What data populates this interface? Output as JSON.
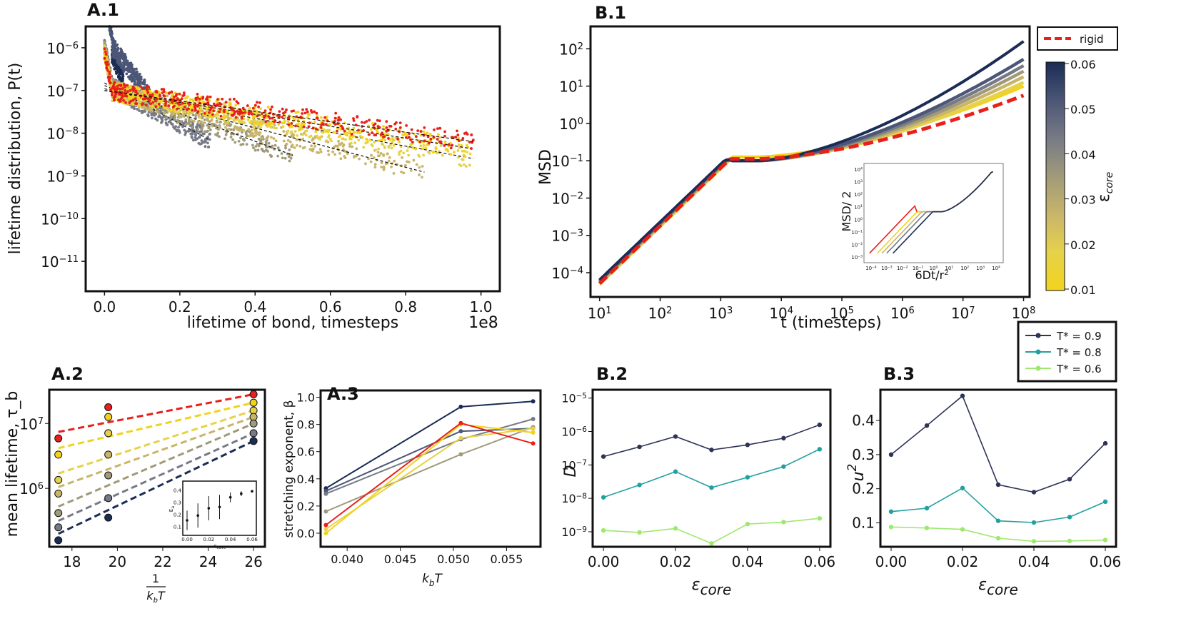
{
  "colors": {
    "eps_0.00": "#f2d31c",
    "eps_0.01": "#e6d24a",
    "eps_0.02": "#c8b56a",
    "eps_0.03": "#a09a7a",
    "eps_0.04": "#777a86",
    "eps_0.05": "#4c5676",
    "eps_0.06": "#1b2c55",
    "rigid": "#e8201a",
    "T09": "#2e3358",
    "T08": "#22a0a0",
    "T06": "#9ee870"
  },
  "chart_data": [
    {
      "id": "A1",
      "panel": "A.1",
      "type": "scatter",
      "xlabel": "lifetime of bond, timesteps",
      "ylabel": "lifetime distribution, P(t)",
      "x_offset_label": "1e8",
      "xlim": [
        -0.05,
        1.05
      ],
      "ylim_log": [
        -11.7,
        -5.5
      ],
      "yscale": "log",
      "xticks": [
        "0.0",
        "0.2",
        "0.4",
        "0.6",
        "0.8",
        "1.0"
      ],
      "yticks": [
        "10^-6",
        "10^-7",
        "10^-8",
        "10^-9",
        "10^-10",
        "10^-11"
      ],
      "series": [
        {
          "color_key": "eps_0.06",
          "tau": 0.009,
          "xmax": 0.05,
          "p0": 2e-06
        },
        {
          "color_key": "eps_0.05",
          "tau": 0.017,
          "xmax": 0.12,
          "p0": 1.8e-06
        },
        {
          "color_key": "eps_0.04",
          "tau": 0.041,
          "xmax": 0.28,
          "p0": 1.5e-07
        },
        {
          "color_key": "eps_0.03",
          "tau": 0.06,
          "xmax": 0.5,
          "p0": 1.3e-07
        },
        {
          "color_key": "eps_0.02",
          "tau": 0.085,
          "xmax": 0.85,
          "p0": 1.1e-07
        },
        {
          "color_key": "eps_0.01",
          "tau": 0.12,
          "xmax": 0.98,
          "p0": 1e-07
        },
        {
          "color_key": "eps_0.00",
          "tau": 0.14,
          "xmax": 0.98,
          "p0": 1e-07
        },
        {
          "color_key": "rigid",
          "tau": 0.16,
          "xmax": 0.98,
          "p0": 1e-07
        }
      ]
    },
    {
      "id": "B1",
      "panel": "B.1",
      "type": "line",
      "xlabel": "t (timesteps)",
      "ylabel": "MSD",
      "xscale": "log",
      "yscale": "log",
      "xlim_log": [
        0.85,
        8.1
      ],
      "ylim_log": [
        -4.65,
        2.6
      ],
      "xticks": [
        "10^1",
        "10^2",
        "10^3",
        "10^4",
        "10^5",
        "10^6",
        "10^7",
        "10^8"
      ],
      "yticks": [
        "10^2",
        "10^1",
        "10^0",
        "10^-1",
        "10^-2",
        "10^-3",
        "10^-4"
      ],
      "legend": [
        "rigid"
      ],
      "colorbar_label": "ε_core",
      "colorbar_ticks": [
        "0.06",
        "0.05",
        "0.04",
        "0.03",
        "0.02",
        "0.01"
      ],
      "series": [
        {
          "color_key": "eps_0.00",
          "logmsd_end": 1.0
        },
        {
          "color_key": "eps_0.01",
          "logmsd_end": 1.1
        },
        {
          "color_key": "eps_0.02",
          "logmsd_end": 1.25
        },
        {
          "color_key": "eps_0.03",
          "logmsd_end": 1.4
        },
        {
          "color_key": "eps_0.04",
          "logmsd_end": 1.55
        },
        {
          "color_key": "eps_0.05",
          "logmsd_end": 1.72
        },
        {
          "color_key": "eps_0.06",
          "logmsd_end": 2.2
        },
        {
          "color_key": "rigid",
          "logmsd_end": 0.75,
          "dashed": true
        }
      ],
      "inset": {
        "xlabel": "6Dt/r^2",
        "ylabel": "MSD/ 2",
        "xticks": [
          "10^-4",
          "10^-3",
          "10^-2",
          "10^-1",
          "10^0",
          "10^1",
          "10^2",
          "10^3",
          "10^4"
        ],
        "yticks": [
          "10^4",
          "10^3",
          "10^2",
          "10^1",
          "10^0",
          "10^-1",
          "10^-2",
          "10^-3"
        ]
      }
    },
    {
      "id": "A2",
      "panel": "A.2",
      "type": "scatter",
      "xlabel": "1/k_bT",
      "ylabel": "mean lifetime, τ_b",
      "yscale": "log",
      "xlim": [
        17.0,
        26.5
      ],
      "ylim_log": [
        5.1,
        7.52
      ],
      "xticks": [
        "18",
        "20",
        "22",
        "24",
        "26"
      ],
      "yticks": [
        "10^7",
        "10^6"
      ],
      "x": [
        17.4,
        19.6,
        26.0
      ],
      "series": [
        {
          "color_key": "rigid",
          "logtau": [
            6.77,
            7.25,
            7.45
          ]
        },
        {
          "color_key": "eps_0.00",
          "logtau": [
            6.52,
            7.1,
            7.32
          ]
        },
        {
          "color_key": "eps_0.01",
          "logtau": [
            6.13,
            6.85,
            7.2
          ]
        },
        {
          "color_key": "eps_0.02",
          "logtau": [
            5.92,
            6.52,
            7.1
          ]
        },
        {
          "color_key": "eps_0.03",
          "logtau": [
            5.62,
            6.2,
            7.0
          ]
        },
        {
          "color_key": "eps_0.04",
          "logtau": [
            5.4,
            5.85,
            6.85
          ]
        },
        {
          "color_key": "eps_0.06",
          "logtau": [
            5.2,
            5.55,
            6.73
          ]
        }
      ],
      "inset": {
        "xlabel": "ε_core",
        "ylabel": "E_a",
        "xticks": [
          "0.00",
          "0.02",
          "0.04",
          "0.06"
        ],
        "yticks": [
          "0.4",
          "0.3",
          "0.2",
          "0.1"
        ],
        "x": [
          0.0,
          0.01,
          0.02,
          0.03,
          0.04,
          0.05,
          0.06
        ],
        "y": [
          0.15,
          0.19,
          0.25,
          0.26,
          0.34,
          0.37,
          0.39
        ],
        "err": [
          0.08,
          0.1,
          0.1,
          0.1,
          0.04,
          0.02,
          0.01
        ]
      }
    },
    {
      "id": "A3",
      "panel": "A.3",
      "type": "line",
      "xlabel": "k_bT",
      "ylabel": "stretching exponent, β",
      "xlim": [
        0.0375,
        0.0582
      ],
      "ylim": [
        -0.1,
        1.05
      ],
      "xticks": [
        "0.040",
        "0.045",
        "0.050",
        "0.055"
      ],
      "yticks": [
        "1.0",
        "0.8",
        "0.6",
        "0.4",
        "0.2",
        "0.0"
      ],
      "x": [
        0.038,
        0.0507,
        0.0575
      ],
      "series": [
        {
          "color_key": "eps_0.06",
          "values": [
            0.33,
            0.93,
            0.97
          ]
        },
        {
          "color_key": "eps_0.05",
          "values": [
            0.31,
            0.75,
            0.77
          ]
        },
        {
          "color_key": "eps_0.04",
          "values": [
            0.29,
            0.69,
            0.84
          ]
        },
        {
          "color_key": "eps_0.03",
          "values": [
            0.16,
            0.58,
            0.78
          ]
        },
        {
          "color_key": "eps_0.01",
          "values": [
            0.03,
            0.7,
            0.77
          ]
        },
        {
          "color_key": "eps_0.00",
          "values": [
            0.0,
            0.8,
            0.74
          ]
        },
        {
          "color_key": "rigid",
          "values": [
            0.06,
            0.81,
            0.66
          ]
        }
      ]
    },
    {
      "id": "B2",
      "panel": "B.2",
      "type": "line",
      "xlabel": "ε_core",
      "ylabel": "D",
      "yscale": "log",
      "xlim": [
        -0.003,
        0.063
      ],
      "ylim_log": [
        -9.45,
        -4.75
      ],
      "xticks": [
        "0.00",
        "0.02",
        "0.04",
        "0.06"
      ],
      "yticks": [
        "10^-5",
        "10^-6",
        "10^-7",
        "10^-8",
        "10^-9"
      ],
      "x": [
        0.0,
        0.01,
        0.02,
        0.03,
        0.04,
        0.05,
        0.06
      ],
      "series": [
        {
          "legend_key": "T09",
          "logvalues": [
            -6.75,
            -6.46,
            -6.15,
            -6.55,
            -6.4,
            -6.2,
            -5.8
          ]
        },
        {
          "legend_key": "T08",
          "logvalues": [
            -7.97,
            -7.6,
            -7.2,
            -7.68,
            -7.37,
            -7.05,
            -6.53
          ]
        },
        {
          "legend_key": "T06",
          "logvalues": [
            -8.96,
            -9.02,
            -8.9,
            -9.35,
            -8.77,
            -8.71,
            -8.6
          ]
        }
      ]
    },
    {
      "id": "B3",
      "panel": "B.3",
      "type": "line",
      "xlabel": "ε_core",
      "ylabel": "u^2",
      "xlim": [
        -0.003,
        0.063
      ],
      "ylim": [
        0.03,
        0.49
      ],
      "xticks": [
        "0.00",
        "0.02",
        "0.04",
        "0.06"
      ],
      "yticks": [
        "0.4",
        "0.3",
        "0.2",
        "0.1"
      ],
      "x": [
        0.0,
        0.01,
        0.02,
        0.03,
        0.04,
        0.05,
        0.06
      ],
      "series": [
        {
          "legend_key": "T09",
          "values": [
            0.3,
            0.385,
            0.472,
            0.212,
            0.19,
            0.228,
            0.333
          ]
        },
        {
          "legend_key": "T08",
          "values": [
            0.133,
            0.143,
            0.202,
            0.106,
            0.101,
            0.117,
            0.162
          ]
        },
        {
          "legend_key": "T06",
          "values": [
            0.088,
            0.085,
            0.081,
            0.055,
            0.046,
            0.047,
            0.05
          ]
        }
      ]
    }
  ],
  "temp_legend": [
    {
      "key": "T09",
      "label": "T* = 0.9"
    },
    {
      "key": "T08",
      "label": "T* = 0.8"
    },
    {
      "key": "T06",
      "label": "T* = 0.6"
    }
  ]
}
